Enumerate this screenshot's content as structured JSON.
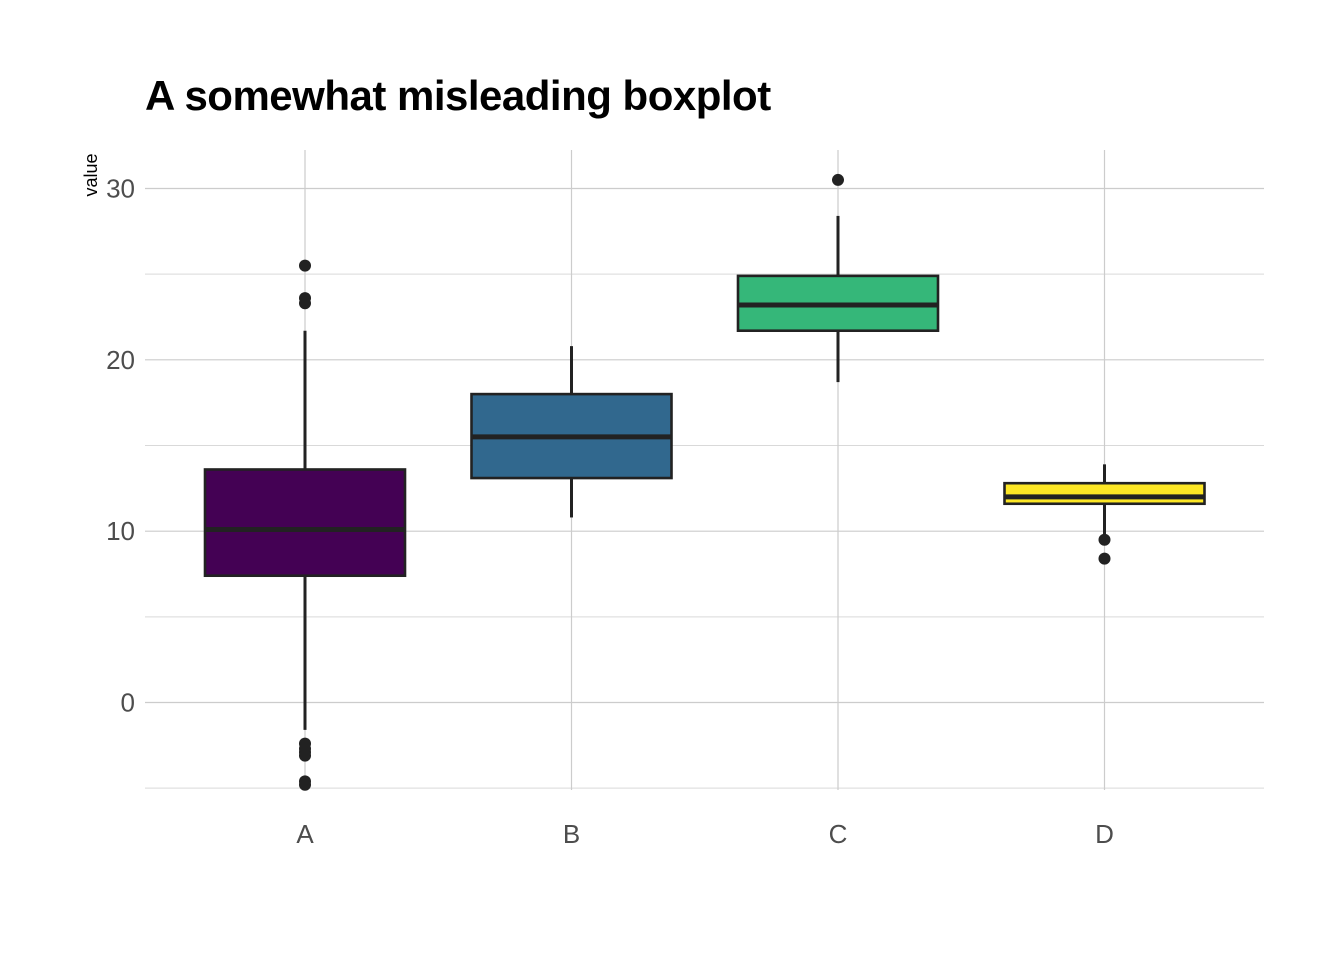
{
  "chart_data": {
    "type": "boxplot",
    "title": "A somewhat misleading boxplot",
    "xlabel": "",
    "ylabel": "value",
    "categories": [
      "A",
      "B",
      "C",
      "D"
    ],
    "ylim": [
      -5,
      32
    ],
    "yticks": [
      0,
      10,
      20,
      30
    ],
    "grid": true,
    "legend": "none",
    "boxes": [
      {
        "category": "A",
        "color": "#440154",
        "whisker_low": -1.6,
        "q1": 7.4,
        "median": 10.1,
        "q3": 13.6,
        "whisker_high": 21.7,
        "outliers": [
          25.5,
          23.6,
          23.3,
          -2.4,
          -2.7,
          -2.9,
          -3.1,
          -4.6,
          -4.8
        ]
      },
      {
        "category": "B",
        "color": "#31688E",
        "whisker_low": 10.8,
        "q1": 13.1,
        "median": 15.5,
        "q3": 18.0,
        "whisker_high": 20.8,
        "outliers": []
      },
      {
        "category": "C",
        "color": "#35B779",
        "whisker_low": 18.7,
        "q1": 21.7,
        "median": 23.2,
        "q3": 24.9,
        "whisker_high": 28.4,
        "outliers": [
          30.5
        ]
      },
      {
        "category": "D",
        "color": "#FDE725",
        "whisker_low": 9.6,
        "q1": 11.6,
        "median": 12.0,
        "q3": 12.8,
        "whisker_high": 13.9,
        "outliers": [
          9.5,
          8.4
        ]
      }
    ]
  }
}
